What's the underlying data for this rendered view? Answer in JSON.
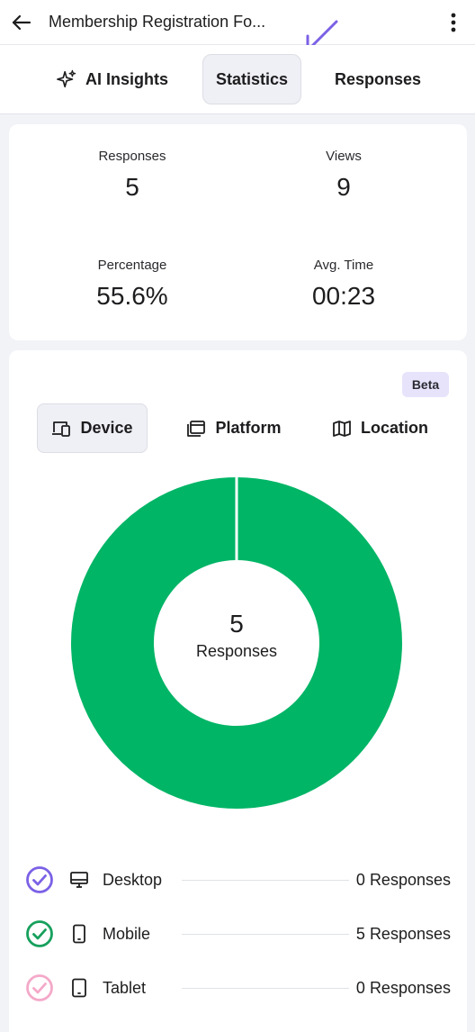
{
  "header": {
    "title": "Membership Registration Fo..."
  },
  "tabs": [
    {
      "label": "AI Insights",
      "icon": "sparkle-icon"
    },
    {
      "label": "Statistics",
      "active": true
    },
    {
      "label": "Responses"
    }
  ],
  "stats": {
    "responses_label": "Responses",
    "responses_value": "5",
    "views_label": "Views",
    "views_value": "9",
    "percentage_label": "Percentage",
    "percentage_value": "55.6%",
    "avgtime_label": "Avg. Time",
    "avgtime_value": "00:23"
  },
  "breakdown": {
    "badge": "Beta",
    "segments": [
      {
        "label": "Device",
        "icon": "devices-icon",
        "active": true
      },
      {
        "label": "Platform",
        "icon": "window-icon"
      },
      {
        "label": "Location",
        "icon": "map-icon"
      }
    ],
    "center_value": "5",
    "center_label": "Responses",
    "colors": {
      "mobile": "#00b566",
      "desktop": "#7b61e6",
      "tablet": "#f4a9c9",
      "accent_arrow": "#7b61e6"
    },
    "legend": [
      {
        "name": "Desktop",
        "icon": "monitor-icon",
        "count": "0",
        "unit": "Responses",
        "check_color": "#7b61e6"
      },
      {
        "name": "Mobile",
        "icon": "phone-icon",
        "count": "5",
        "unit": "Responses",
        "check_color": "#17a05d"
      },
      {
        "name": "Tablet",
        "icon": "tablet-icon",
        "count": "0",
        "unit": "Responses",
        "check_color": "#f4a9c9"
      }
    ]
  },
  "chart_data": {
    "type": "pie",
    "categories": [
      "Desktop",
      "Mobile",
      "Tablet"
    ],
    "values": [
      0,
      5,
      0
    ],
    "title": "",
    "center_text": "5 Responses"
  }
}
